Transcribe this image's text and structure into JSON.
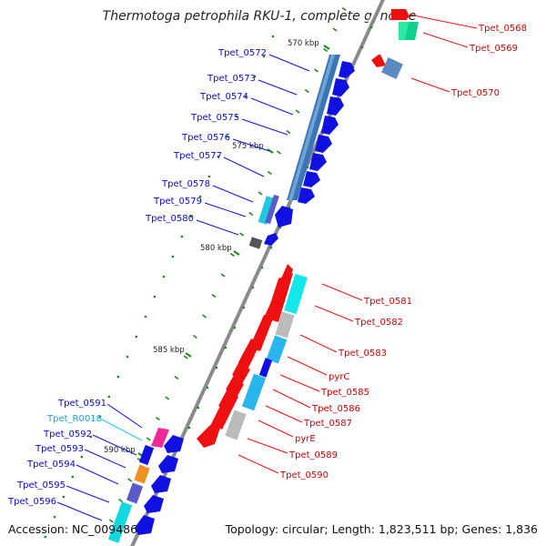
{
  "title": "Thermotoga petrophila RKU-1, complete genome",
  "footer": {
    "accession": "Accession: NC_009486",
    "summary": "Topology: circular; Length: 1,823,511 bp; Genes: 1,836"
  },
  "colors": {
    "forward_gene": "#1010e0",
    "reverse_gene": "#ee1010",
    "rna_gene": "#10c8e0",
    "backbone": "#888888",
    "tick": "#1a8a1a",
    "label_forward": "#0a0acc",
    "label_reverse": "#cc0000",
    "label_rna": "#11aacc"
  },
  "kbp_marks": [
    {
      "text": "570 kbp"
    },
    {
      "text": "575 kbp"
    },
    {
      "text": "580 kbp"
    },
    {
      "text": "585 kbp"
    },
    {
      "text": "590 kbp"
    }
  ],
  "genes": [
    {
      "label": "Tpet_0568",
      "strand": "reverse"
    },
    {
      "label": "Tpet_0569",
      "strand": "reverse"
    },
    {
      "label": "Tpet_0570",
      "strand": "reverse"
    },
    {
      "label": "Tpet_0572",
      "strand": "forward"
    },
    {
      "label": "Tpet_0573",
      "strand": "forward"
    },
    {
      "label": "Tpet_0574",
      "strand": "forward"
    },
    {
      "label": "Tpet_0575",
      "strand": "forward"
    },
    {
      "label": "Tpet_0576",
      "strand": "forward"
    },
    {
      "label": "Tpet_0577",
      "strand": "forward"
    },
    {
      "label": "Tpet_0578",
      "strand": "forward"
    },
    {
      "label": "Tpet_0579",
      "strand": "forward"
    },
    {
      "label": "Tpet_0580",
      "strand": "forward"
    },
    {
      "label": "Tpet_0581",
      "strand": "reverse"
    },
    {
      "label": "Tpet_0582",
      "strand": "reverse"
    },
    {
      "label": "Tpet_0583",
      "strand": "reverse"
    },
    {
      "label": "pyrC",
      "strand": "reverse"
    },
    {
      "label": "Tpet_0585",
      "strand": "reverse"
    },
    {
      "label": "Tpet_0586",
      "strand": "reverse"
    },
    {
      "label": "Tpet_0587",
      "strand": "reverse"
    },
    {
      "label": "pyrE",
      "strand": "reverse"
    },
    {
      "label": "Tpet_0589",
      "strand": "reverse"
    },
    {
      "label": "Tpet_0590",
      "strand": "reverse"
    },
    {
      "label": "Tpet_0591",
      "strand": "forward"
    },
    {
      "label": "Tpet_R0018",
      "strand": "rna"
    },
    {
      "label": "Tpet_0592",
      "strand": "forward"
    },
    {
      "label": "Tpet_0593",
      "strand": "forward"
    },
    {
      "label": "Tpet_0594",
      "strand": "forward"
    },
    {
      "label": "Tpet_0595",
      "strand": "forward"
    },
    {
      "label": "Tpet_0596",
      "strand": "forward"
    }
  ]
}
